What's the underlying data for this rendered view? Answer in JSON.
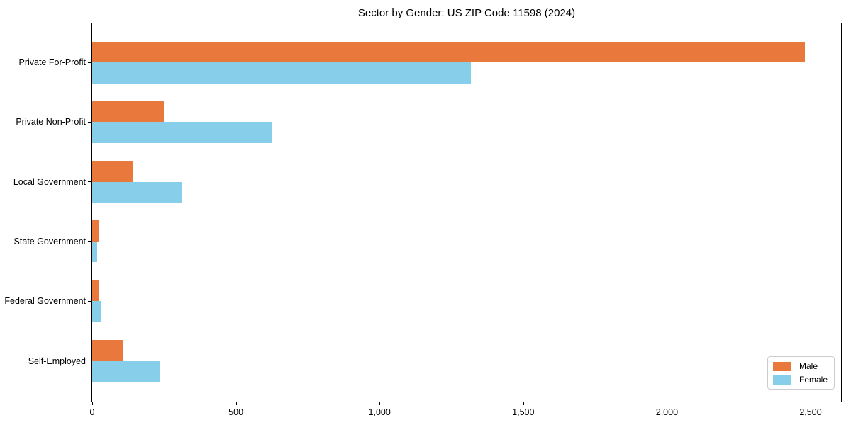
{
  "figure": {
    "background_color": "#ffffff",
    "axis_color": "#000000"
  },
  "chart_data": {
    "type": "bar",
    "orientation": "horizontal",
    "title": "Sector by Gender: US ZIP Code 11598 (2024)",
    "xlabel": "",
    "ylabel": "",
    "grid": false,
    "categories": [
      "Private For-Profit",
      "Private Non-Profit",
      "Local Government",
      "State Government",
      "Federal Government",
      "Self-Employed"
    ],
    "series": [
      {
        "name": "Male",
        "color": "#e8783c",
        "values": [
          2480,
          249,
          141,
          25,
          22,
          105
        ]
      },
      {
        "name": "Female",
        "color": "#87ceeb",
        "values": [
          1318,
          627,
          313,
          18,
          31,
          237
        ]
      }
    ],
    "xlim": [
      0,
      2606
    ],
    "x_ticks": [
      0,
      500,
      1000,
      1500,
      2000,
      2500
    ],
    "x_tick_labels": [
      "0",
      "500",
      "1,000",
      "1,500",
      "2,000",
      "2,500"
    ],
    "legend": {
      "position": "lower right",
      "entries": [
        "Male",
        "Female"
      ]
    }
  }
}
